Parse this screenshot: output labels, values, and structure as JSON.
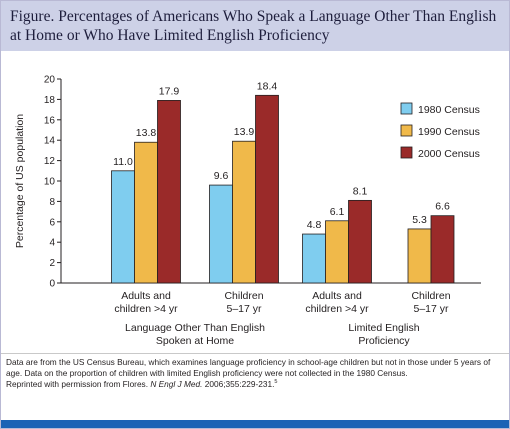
{
  "figure": {
    "title": "Figure.  Percentages of Americans Who Speak a Language Other Than English at Home or Who Have Limited English Proficiency"
  },
  "chart_data": {
    "type": "bar",
    "ylabel": "Percentage of US population",
    "ylim": [
      0,
      20
    ],
    "yticks": [
      0,
      2,
      4,
      6,
      8,
      10,
      12,
      14,
      16,
      18,
      20
    ],
    "grid": false,
    "legend_position": "right",
    "groups": [
      {
        "name": "Language Other Than English Spoken at Home",
        "label_lines": [
          "Language Other Than English",
          "Spoken at Home"
        ],
        "categories": [
          {
            "label_lines": [
              "Adults and",
              "children >4 yr"
            ],
            "values": {
              "1980 Census": 11.0,
              "1990 Census": 13.8,
              "2000 Census": 17.9
            }
          },
          {
            "label_lines": [
              "Children",
              "5–17 yr"
            ],
            "values": {
              "1980 Census": 9.6,
              "1990 Census": 13.9,
              "2000 Census": 18.4
            }
          }
        ]
      },
      {
        "name": "Limited English Proficiency",
        "label_lines": [
          "Limited English",
          "Proficiency"
        ],
        "categories": [
          {
            "label_lines": [
              "Adults and",
              "children >4 yr"
            ],
            "values": {
              "1980 Census": 4.8,
              "1990 Census": 6.1,
              "2000 Census": 8.1
            }
          },
          {
            "label_lines": [
              "Children",
              "5–17 yr"
            ],
            "values": {
              "1990 Census": 5.3,
              "2000 Census": 6.6
            }
          }
        ]
      }
    ],
    "series": [
      {
        "name": "1980 Census",
        "color": "#7fcdef"
      },
      {
        "name": "1990 Census",
        "color": "#f0b94a"
      },
      {
        "name": "2000 Census",
        "color": "#9a2a29"
      }
    ]
  },
  "note": {
    "source_text": "Data are from the US Census Bureau, which examines language proficiency in school-age children but not in those under 5 years of age. Data on the proportion of children with limited English proficiency were not collected in the 1980 Census.",
    "credit_prefix": "Reprinted with permission from Flores. ",
    "credit_journal": "N Engl J Med.",
    "credit_citation": " 2006;355:229-231.",
    "credit_ref": "5"
  }
}
